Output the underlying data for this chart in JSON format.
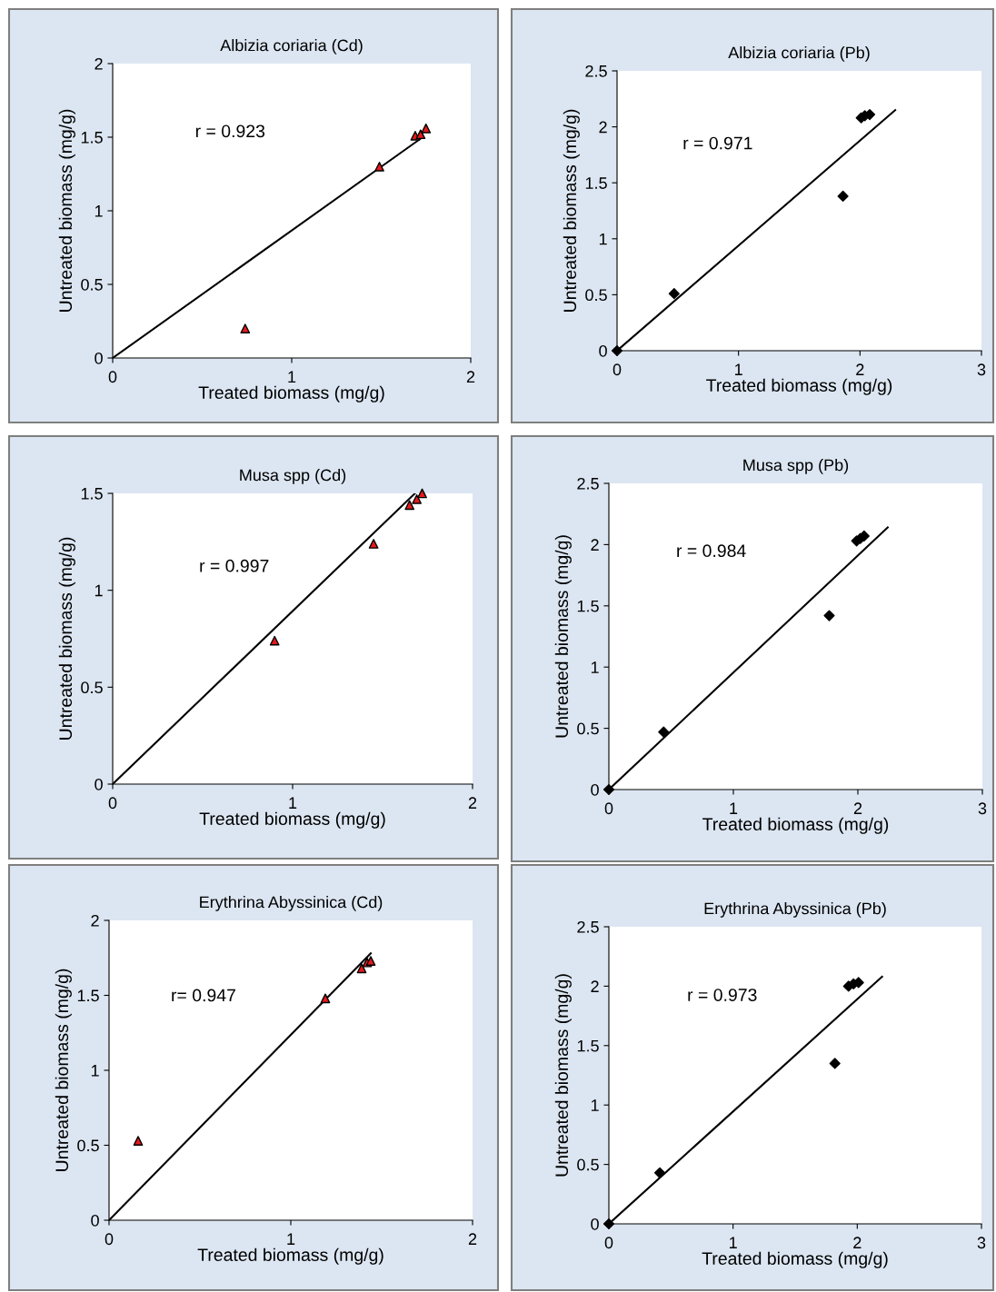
{
  "chart_data": [
    {
      "type": "scatter",
      "title": "Albizia coriaria (Cd)",
      "xlabel": "Treated biomass (mg/g)",
      "ylabel": "Untreated biomass (mg/g)",
      "annotations": [
        "r = 0.923"
      ],
      "xlim": [
        0,
        2
      ],
      "xticks": [
        0,
        1,
        2
      ],
      "ylim": [
        0,
        2
      ],
      "yticks": [
        0,
        0.5,
        1,
        1.5,
        2
      ],
      "grid": false,
      "legend": false,
      "series": [
        {
          "type": "scatter",
          "marker": "triangle",
          "color": "#e31a1c",
          "x": [
            0.74,
            1.49,
            1.69,
            1.72,
            1.75
          ],
          "values": [
            0.2,
            1.3,
            1.51,
            1.52,
            1.56
          ]
        },
        {
          "type": "line",
          "marker": "none",
          "color": "#000000",
          "x": [
            0,
            1.72
          ],
          "values": [
            0,
            1.49
          ]
        }
      ]
    },
    {
      "type": "scatter",
      "title": "Albizia coriaria (Pb)",
      "xlabel": "Treated biomass (mg/g)",
      "ylabel": "Untreated biomass (mg/g)",
      "annotations": [
        "r = 0.971"
      ],
      "xlim": [
        0,
        3
      ],
      "xticks": [
        0,
        1,
        2,
        3
      ],
      "ylim": [
        0,
        2.5
      ],
      "yticks": [
        0,
        0.5,
        1,
        1.5,
        2,
        2.5
      ],
      "grid": false,
      "legend": false,
      "series": [
        {
          "type": "scatter",
          "marker": "diamond",
          "color": "#000000",
          "x": [
            0,
            0.47,
            1.86,
            2.01,
            2.04,
            2.08
          ],
          "values": [
            0,
            0.51,
            1.38,
            2.08,
            2.1,
            2.11
          ]
        },
        {
          "type": "line",
          "marker": "none",
          "color": "#000000",
          "x": [
            0,
            2.29
          ],
          "values": [
            0,
            2.15
          ]
        }
      ]
    },
    {
      "type": "scatter",
      "title": "Musa spp (Cd)",
      "xlabel": "Treated biomass (mg/g)",
      "ylabel": "Untreated biomass (mg/g)",
      "annotations": [
        "r = 0.997"
      ],
      "xlim": [
        0,
        2
      ],
      "xticks": [
        0,
        1,
        2
      ],
      "ylim": [
        0,
        1.5
      ],
      "yticks": [
        0,
        0.5,
        1,
        1.5
      ],
      "grid": false,
      "legend": false,
      "series": [
        {
          "type": "scatter",
          "marker": "triangle",
          "color": "#e31a1c",
          "x": [
            0.9,
            1.45,
            1.65,
            1.69,
            1.72
          ],
          "values": [
            0.74,
            1.24,
            1.44,
            1.47,
            1.5
          ]
        },
        {
          "type": "line",
          "marker": "none",
          "color": "#000000",
          "x": [
            0,
            1.68
          ],
          "values": [
            0,
            1.5
          ]
        }
      ]
    },
    {
      "type": "scatter",
      "title": "Musa spp (Pb)",
      "xlabel": "Treated biomass (mg/g)",
      "ylabel": "Untreated biomass (mg/g)",
      "annotations": [
        "r = 0.984"
      ],
      "xlim": [
        0,
        3
      ],
      "xticks": [
        0,
        1,
        2,
        3
      ],
      "ylim": [
        0,
        2.5
      ],
      "yticks": [
        0,
        0.5,
        1,
        1.5,
        2,
        2.5
      ],
      "grid": false,
      "legend": false,
      "series": [
        {
          "type": "scatter",
          "marker": "diamond",
          "color": "#000000",
          "x": [
            0,
            0.44,
            1.77,
            1.99,
            2.02,
            2.05
          ],
          "values": [
            0,
            0.47,
            1.42,
            2.03,
            2.05,
            2.07
          ]
        },
        {
          "type": "line",
          "marker": "none",
          "color": "#000000",
          "x": [
            0,
            2.24
          ],
          "values": [
            0,
            2.14
          ]
        }
      ]
    },
    {
      "type": "scatter",
      "title": "Erythrina Abyssinica (Cd)",
      "xlabel": "Treated biomass (mg/g)",
      "ylabel": "Untreated biomass (mg/g)",
      "annotations": [
        "r= 0.947"
      ],
      "xlim": [
        0,
        2
      ],
      "xticks": [
        0,
        1,
        2
      ],
      "ylim": [
        0,
        2
      ],
      "yticks": [
        0,
        0.5,
        1,
        1.5,
        2
      ],
      "grid": false,
      "legend": false,
      "series": [
        {
          "type": "scatter",
          "marker": "triangle",
          "color": "#e31a1c",
          "x": [
            0.16,
            1.19,
            1.39,
            1.42,
            1.44
          ],
          "values": [
            0.53,
            1.48,
            1.68,
            1.72,
            1.73
          ]
        },
        {
          "type": "line",
          "marker": "none",
          "color": "#000000",
          "x": [
            0,
            1.44
          ],
          "values": [
            0,
            1.78
          ]
        }
      ]
    },
    {
      "type": "scatter",
      "title": "Erythrina Abyssinica (Pb)",
      "xlabel": "Treated biomass (mg/g)",
      "ylabel": "Untreated biomass (mg/g)",
      "annotations": [
        "r = 0.973"
      ],
      "xlim": [
        0,
        3
      ],
      "xticks": [
        0,
        1,
        2,
        3
      ],
      "ylim": [
        0,
        2.5
      ],
      "yticks": [
        0,
        0.5,
        1,
        1.5,
        2,
        2.5
      ],
      "grid": false,
      "legend": false,
      "series": [
        {
          "type": "scatter",
          "marker": "diamond",
          "color": "#000000",
          "x": [
            0,
            0.41,
            1.82,
            1.93,
            1.97,
            2.01
          ],
          "values": [
            0,
            0.43,
            1.35,
            2.0,
            2.02,
            2.03
          ]
        },
        {
          "type": "line",
          "marker": "none",
          "color": "#000000",
          "x": [
            0,
            2.2
          ],
          "values": [
            0,
            2.08
          ]
        }
      ]
    }
  ]
}
